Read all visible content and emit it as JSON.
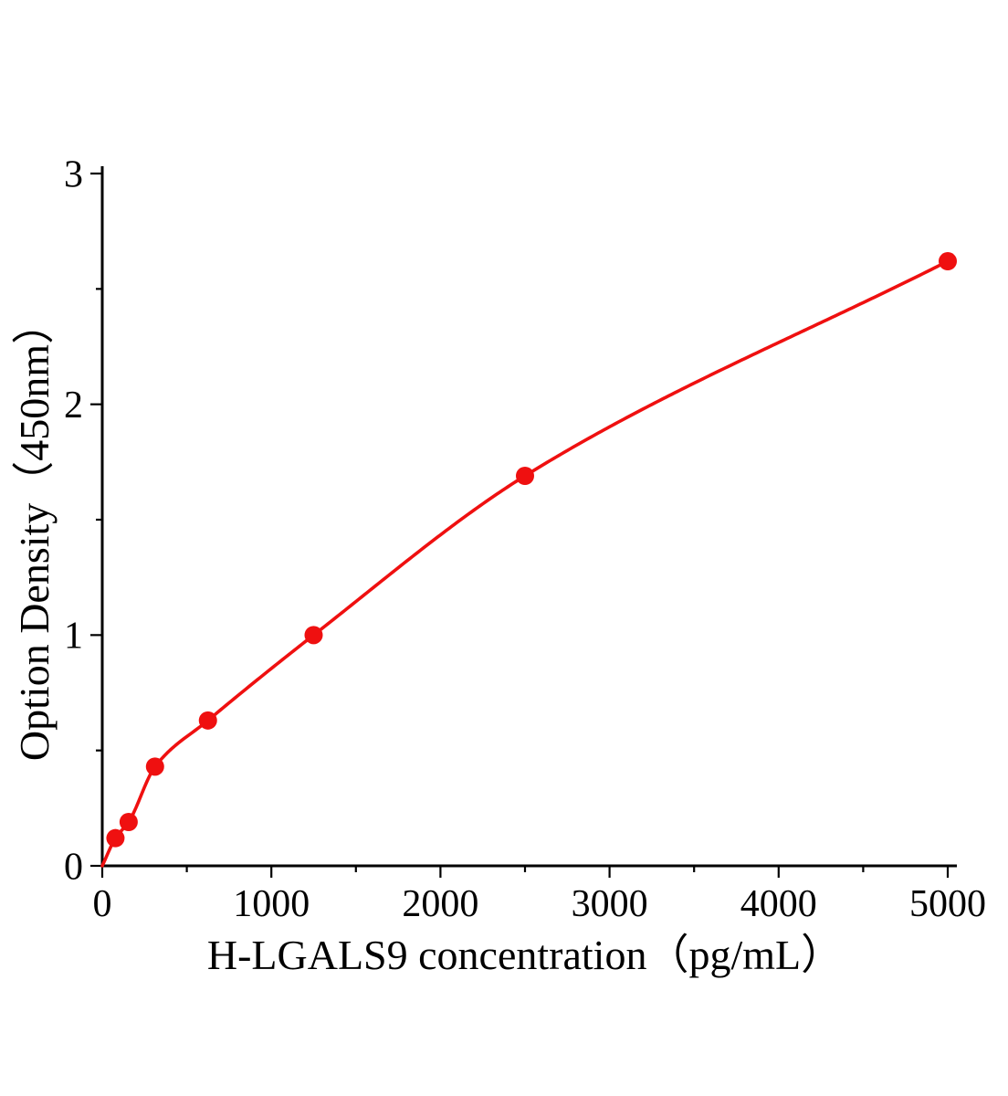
{
  "chart_data": {
    "type": "scatter",
    "title": "",
    "xlabel": "H-LGALS9 concentration（pg/mL）",
    "ylabel": "Option Density（450nm）",
    "xlim": [
      0,
      5000
    ],
    "ylim": [
      0,
      3
    ],
    "x_ticks": [
      0,
      1000,
      2000,
      3000,
      4000,
      5000
    ],
    "y_ticks": [
      0,
      1,
      2,
      3
    ],
    "x_minor_step": 500,
    "y_minor_step": 0.5,
    "grid": "off",
    "legend": "none",
    "series": [
      {
        "name": "standard-curve",
        "color": "#ef1010",
        "marker": "circle",
        "curve_start": {
          "x": 0,
          "y": 0
        },
        "points": [
          {
            "x": 78,
            "y": 0.12
          },
          {
            "x": 156,
            "y": 0.19
          },
          {
            "x": 312,
            "y": 0.43
          },
          {
            "x": 625,
            "y": 0.63
          },
          {
            "x": 1250,
            "y": 1.0
          },
          {
            "x": 2500,
            "y": 1.69
          },
          {
            "x": 5000,
            "y": 2.62
          }
        ]
      }
    ]
  }
}
